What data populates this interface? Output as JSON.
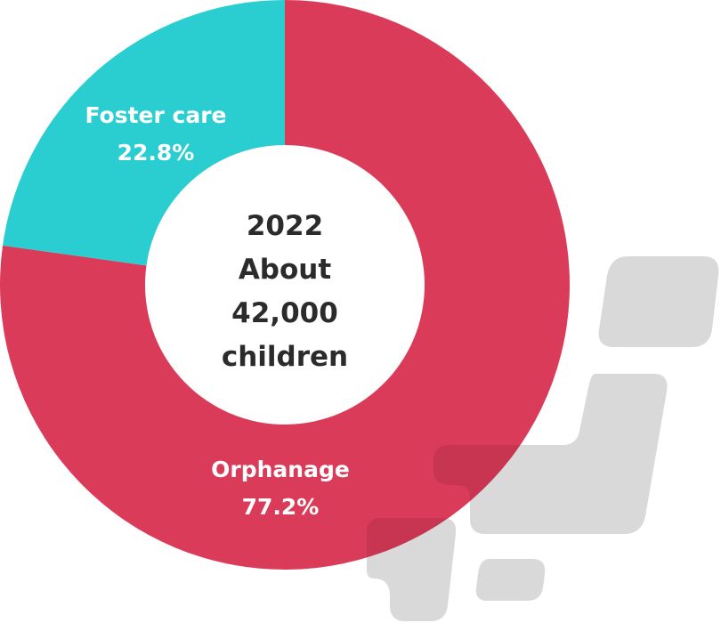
{
  "colors": {
    "orphanage": "#d93554",
    "foster_care": "#2acdd0",
    "background_shape": "#d9d9d9",
    "center_text": "#2b2b2b",
    "slice_label": "#ffffff"
  },
  "chart_data": {
    "type": "pie",
    "variant": "donut",
    "center_label": [
      "2022",
      "About",
      "42,000",
      "children"
    ],
    "slices": [
      {
        "name": "Orphanage",
        "value": 77.2,
        "label": "77.2%"
      },
      {
        "name": "Foster care",
        "value": 22.8,
        "label": "22.8%"
      }
    ],
    "start_angle": "12 o'clock",
    "direction": "clockwise"
  },
  "background": {
    "icon": "japan-map-silhouette-icon"
  }
}
